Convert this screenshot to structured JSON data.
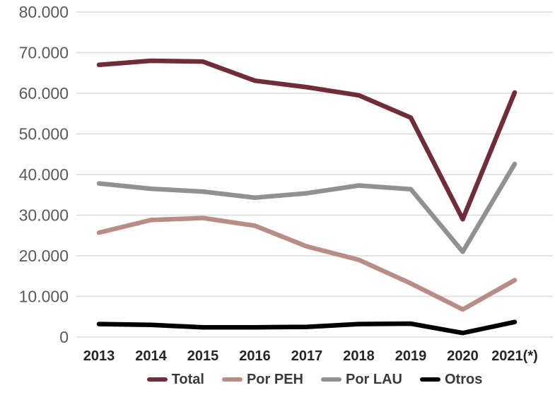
{
  "chart_data": {
    "type": "line",
    "title": "",
    "categories": [
      "2013",
      "2014",
      "2015",
      "2016",
      "2017",
      "2018",
      "2019",
      "2020",
      "2021(*)"
    ],
    "series": [
      {
        "name": "Total",
        "color": "#702c37",
        "values": [
          67000,
          68000,
          67800,
          63100,
          61500,
          59500,
          54000,
          29000,
          60200
        ]
      },
      {
        "name": "Por PEH",
        "color": "#b98c86",
        "values": [
          25700,
          28800,
          29300,
          27400,
          22300,
          19000,
          13200,
          6800,
          14000
        ]
      },
      {
        "name": "Por LAU",
        "color": "#919191",
        "values": [
          37800,
          36500,
          35800,
          34300,
          35400,
          37300,
          36400,
          21000,
          42600
        ]
      },
      {
        "name": "Otros",
        "color": "#000000",
        "values": [
          3200,
          3000,
          2400,
          2400,
          2500,
          3200,
          3300,
          1000,
          3700
        ]
      }
    ],
    "y_axis": {
      "min": 0,
      "max": 80000,
      "step": 10000,
      "tick_labels": [
        "0",
        "10.000",
        "20.000",
        "30.000",
        "40.000",
        "50.000",
        "60.000",
        "70.000",
        "80.000"
      ]
    },
    "x_axis": {
      "tick_labels": [
        "2013",
        "2014",
        "2015",
        "2016",
        "2017",
        "2018",
        "2019",
        "2020",
        "2021(*)"
      ]
    },
    "grid": "horizontal",
    "legend_position": "bottom"
  },
  "colors": {
    "background": "#ffffff",
    "gridline": "#dcdcdc",
    "y_tick_text": "#595959",
    "x_tick_text": "#262626",
    "legend_text": "#3a3a3a"
  }
}
